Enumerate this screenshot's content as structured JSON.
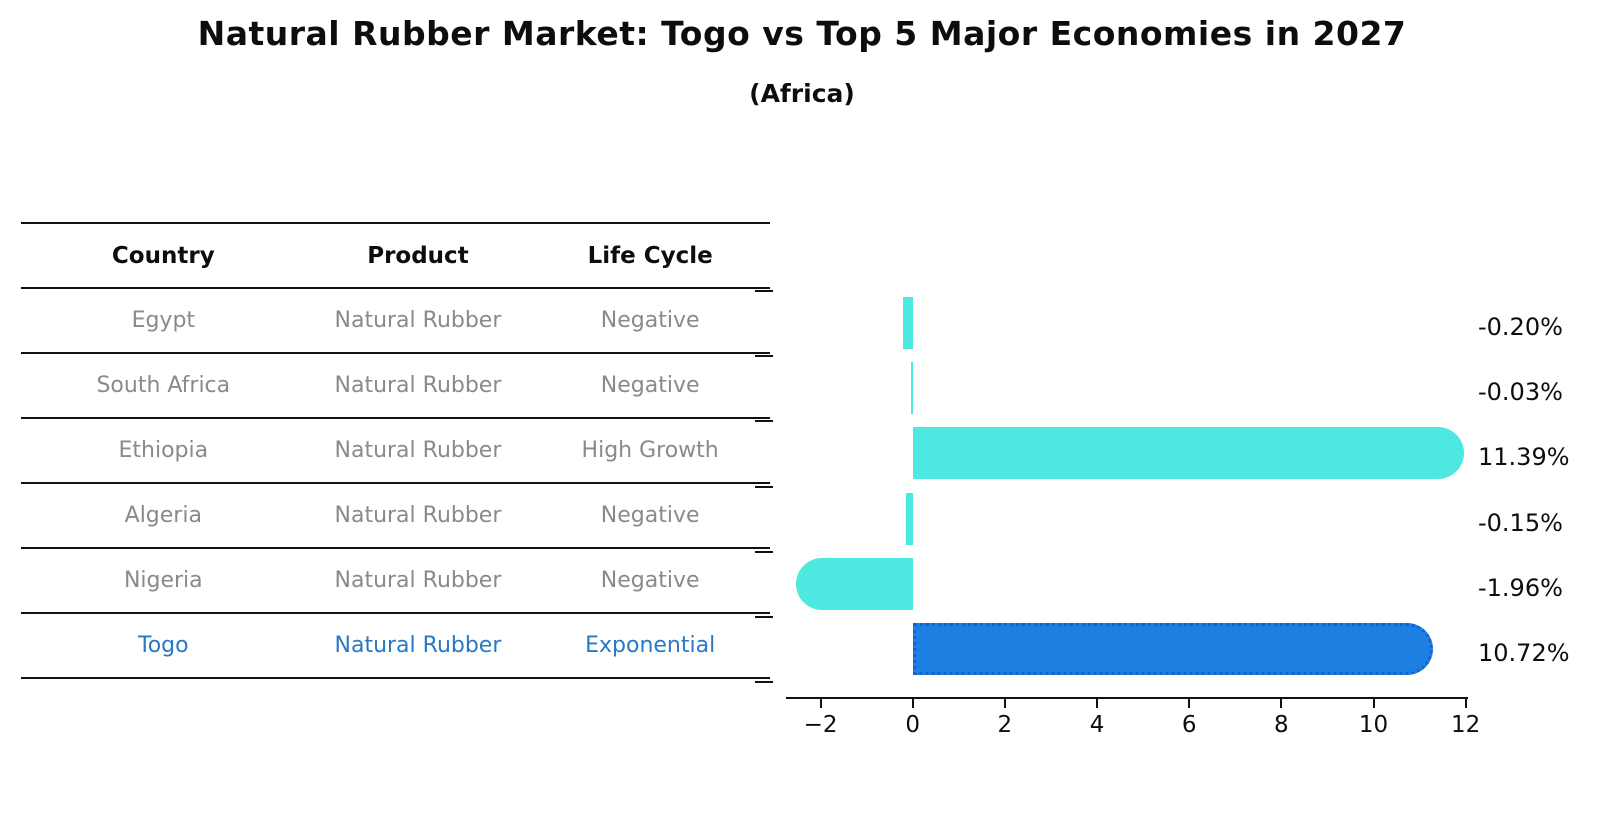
{
  "title": "Natural Rubber Market: Togo vs Top 5 Major Economies in 2027",
  "subtitle": "(Africa)",
  "table": {
    "headers": [
      "Country",
      "Product",
      "Life Cycle"
    ],
    "rows": [
      {
        "country": "Egypt",
        "product": "Natural Rubber",
        "life_cycle": "Negative",
        "highlight": false
      },
      {
        "country": "South Africa",
        "product": "Natural Rubber",
        "life_cycle": "Negative",
        "highlight": false
      },
      {
        "country": "Ethiopia",
        "product": "Natural Rubber",
        "life_cycle": "High Growth",
        "highlight": false
      },
      {
        "country": "Algeria",
        "product": "Natural Rubber",
        "life_cycle": "Negative",
        "highlight": false
      },
      {
        "country": "Nigeria",
        "product": "Natural Rubber",
        "life_cycle": "Negative",
        "highlight": false
      },
      {
        "country": "Togo",
        "product": "Natural Rubber",
        "life_cycle": "Exponential",
        "highlight": true
      }
    ]
  },
  "chart_data": {
    "type": "bar",
    "orientation": "horizontal",
    "title": "",
    "xlabel": "",
    "ylabel": "",
    "categories": [
      "Egypt",
      "South Africa",
      "Ethiopia",
      "Algeria",
      "Nigeria",
      "Togo"
    ],
    "values": [
      -0.2,
      -0.03,
      11.39,
      -0.15,
      -1.96,
      10.72
    ],
    "value_labels": [
      "-0.20%",
      "-0.03%",
      "11.39%",
      "-0.15%",
      "-1.96%",
      "10.72%"
    ],
    "x_tick_values": [
      -2,
      0,
      2,
      4,
      6,
      8,
      10,
      12
    ],
    "x_tick_labels": [
      "−2",
      "0",
      "2",
      "4",
      "6",
      "8",
      "10",
      "12"
    ],
    "xlim": [
      -2.75,
      12
    ],
    "grid": false,
    "legend": "none",
    "highlight_index": 5
  },
  "colors": {
    "bar_default": "#4de8df",
    "bar_highlight": "#1e7fe3",
    "bar_highlight_edge": "#1462cd",
    "highlight_text": "#2878c8",
    "table_text": "#8a8a8a",
    "axis": "#111111",
    "text": "#0d0d0d",
    "background": "#ffffff"
  }
}
